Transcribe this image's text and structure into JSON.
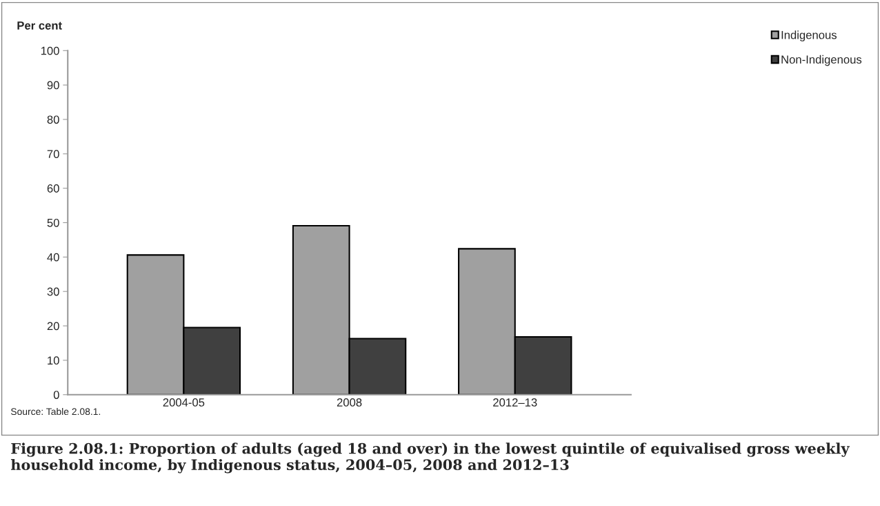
{
  "chart_data": {
    "type": "bar",
    "title": "Figure 2.08.1: Proportion of adults (aged 18 and over) in the lowest quintile of equivalised gross weekly household income, by Indigenous status, 2004–05, 2008 and 2012–13",
    "ylabel": "Per cent",
    "categories": [
      "2004-05",
      "2008",
      "2012–13"
    ],
    "series": [
      {
        "name": "Indigenous",
        "color": "#a0a0a0",
        "values": [
          40.6,
          49.1,
          42.4
        ]
      },
      {
        "name": "Non-Indigenous",
        "color": "#404040",
        "values": [
          19.5,
          16.3,
          16.8
        ]
      }
    ],
    "ylim": [
      0,
      100
    ],
    "yticks": [
      0,
      10,
      20,
      30,
      40,
      50,
      60,
      70,
      80,
      90,
      100
    ],
    "grid": false,
    "legend": "top right",
    "annotations": [
      "Source: Table 2.08.1."
    ]
  }
}
